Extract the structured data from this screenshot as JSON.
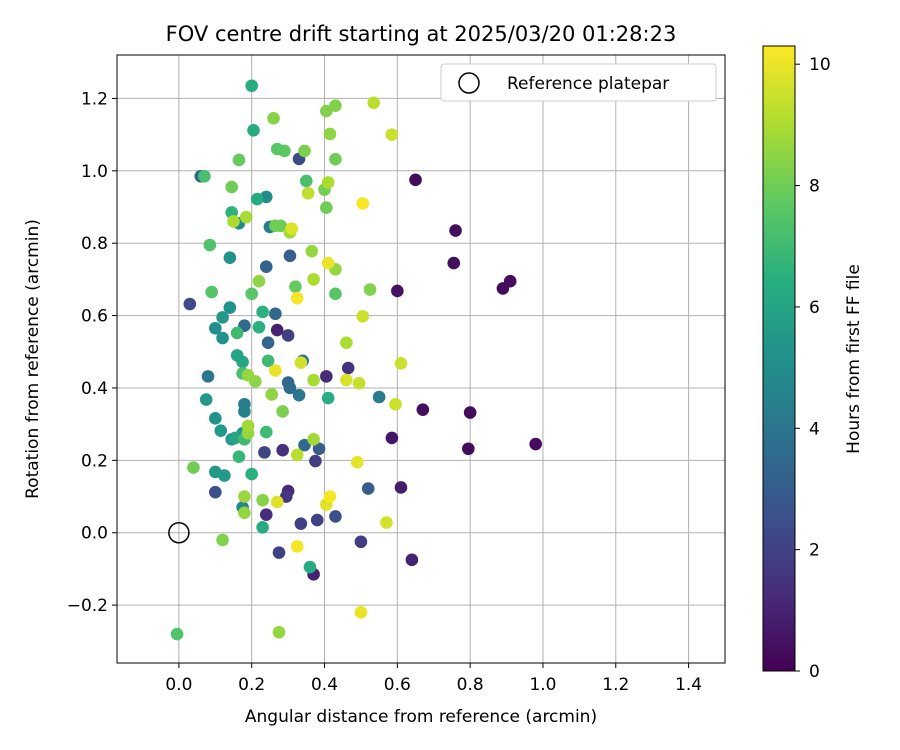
{
  "chart_data": {
    "type": "scatter",
    "title": "FOV centre drift starting at 2025/03/20 01:28:23",
    "xlabel": "Angular distance from reference (arcmin)",
    "ylabel": "Rotation from reference (arcmin)",
    "xlim": [
      -0.17,
      1.5
    ],
    "ylim": [
      -0.36,
      1.32
    ],
    "xticks": [
      0.0,
      0.2,
      0.4,
      0.6,
      0.8,
      1.0,
      1.2,
      1.4
    ],
    "yticks": [
      -0.2,
      0.0,
      0.2,
      0.4,
      0.6,
      0.8,
      1.0,
      1.2
    ],
    "xtick_labels": [
      "0.0",
      "0.2",
      "0.4",
      "0.6",
      "0.8",
      "1.0",
      "1.2",
      "1.4"
    ],
    "ytick_labels": [
      "−0.2",
      "0.0",
      "0.2",
      "0.4",
      "0.6",
      "0.8",
      "1.0",
      "1.2"
    ],
    "grid": true,
    "legend": {
      "placement": "top-right",
      "entries": [
        "Reference platepar"
      ]
    },
    "reference_point": {
      "x": 0.0,
      "y": 0.0
    },
    "colorbar": {
      "label": "Hours from first FF file",
      "min": 0,
      "max": 10.3,
      "ticks": [
        0,
        2,
        4,
        6,
        8,
        10
      ],
      "tick_labels": [
        "0",
        "2",
        "4",
        "6",
        "8",
        "10"
      ],
      "colormap": "viridis"
    },
    "points": [
      {
        "x": 0.65,
        "y": 0.975,
        "c": 0.3
      },
      {
        "x": 0.76,
        "y": 0.835,
        "c": 0.4
      },
      {
        "x": 0.755,
        "y": 0.745,
        "c": 0.4
      },
      {
        "x": 0.89,
        "y": 0.675,
        "c": 0.3
      },
      {
        "x": 0.91,
        "y": 0.695,
        "c": 0.3
      },
      {
        "x": 0.6,
        "y": 0.668,
        "c": 0.5
      },
      {
        "x": 0.67,
        "y": 0.34,
        "c": 0.4
      },
      {
        "x": 0.8,
        "y": 0.332,
        "c": 0.3
      },
      {
        "x": 0.98,
        "y": 0.245,
        "c": 0.3
      },
      {
        "x": 0.795,
        "y": 0.232,
        "c": 0.3
      },
      {
        "x": 0.585,
        "y": 0.262,
        "c": 0.6
      },
      {
        "x": 0.61,
        "y": 0.125,
        "c": 0.8
      },
      {
        "x": 0.64,
        "y": -0.075,
        "c": 1.0
      },
      {
        "x": 0.5,
        "y": -0.025,
        "c": 1.8
      },
      {
        "x": 0.37,
        "y": -0.115,
        "c": 1.0
      },
      {
        "x": 0.38,
        "y": 0.035,
        "c": 2.0
      },
      {
        "x": 0.43,
        "y": 0.045,
        "c": 2.5
      },
      {
        "x": 0.335,
        "y": 0.025,
        "c": 2.0
      },
      {
        "x": 0.275,
        "y": -0.055,
        "c": 2.0
      },
      {
        "x": 0.24,
        "y": 0.05,
        "c": 1.3
      },
      {
        "x": 0.3,
        "y": 0.115,
        "c": 1.2
      },
      {
        "x": 0.295,
        "y": 0.1,
        "c": 1.6
      },
      {
        "x": 0.285,
        "y": 0.228,
        "c": 1.4
      },
      {
        "x": 0.235,
        "y": 0.222,
        "c": 2.2
      },
      {
        "x": 0.375,
        "y": 0.198,
        "c": 1.8
      },
      {
        "x": 0.385,
        "y": 0.232,
        "c": 3.0
      },
      {
        "x": 0.345,
        "y": 0.242,
        "c": 3.5
      },
      {
        "x": 0.405,
        "y": 0.432,
        "c": 1.2
      },
      {
        "x": 0.465,
        "y": 0.455,
        "c": 1.5
      },
      {
        "x": 0.27,
        "y": 0.56,
        "c": 1.0
      },
      {
        "x": 0.3,
        "y": 0.545,
        "c": 2.0
      },
      {
        "x": 0.33,
        "y": 1.033,
        "c": 2.3
      },
      {
        "x": 0.06,
        "y": 0.985,
        "c": 3.5
      },
      {
        "x": 0.03,
        "y": 0.632,
        "c": 2.3
      },
      {
        "x": 0.1,
        "y": 0.112,
        "c": 2.5
      },
      {
        "x": 0.52,
        "y": 0.122,
        "c": 3.0
      },
      {
        "x": 0.305,
        "y": 0.765,
        "c": 3.0
      },
      {
        "x": 0.24,
        "y": 0.735,
        "c": 3.3
      },
      {
        "x": 0.245,
        "y": 0.525,
        "c": 3.3
      },
      {
        "x": 0.265,
        "y": 0.605,
        "c": 3.5
      },
      {
        "x": 0.18,
        "y": 0.572,
        "c": 3.6
      },
      {
        "x": 0.3,
        "y": 0.415,
        "c": 3.5
      },
      {
        "x": 0.305,
        "y": 0.4,
        "c": 3.6
      },
      {
        "x": 0.33,
        "y": 0.38,
        "c": 4.0
      },
      {
        "x": 0.34,
        "y": 0.475,
        "c": 4.0
      },
      {
        "x": 0.55,
        "y": 0.375,
        "c": 4.2
      },
      {
        "x": 0.18,
        "y": 0.355,
        "c": 4.3
      },
      {
        "x": 0.18,
        "y": 0.335,
        "c": 4.5
      },
      {
        "x": 0.08,
        "y": 0.432,
        "c": 4.0
      },
      {
        "x": 0.25,
        "y": 0.845,
        "c": 4.3
      },
      {
        "x": 0.175,
        "y": 0.07,
        "c": 4.7
      },
      {
        "x": 0.24,
        "y": 0.928,
        "c": 5.0
      },
      {
        "x": 0.165,
        "y": 0.855,
        "c": 5.0
      },
      {
        "x": 0.14,
        "y": 0.76,
        "c": 5.2
      },
      {
        "x": 0.14,
        "y": 0.622,
        "c": 5.2
      },
      {
        "x": 0.1,
        "y": 0.565,
        "c": 5.0
      },
      {
        "x": 0.12,
        "y": 0.538,
        "c": 5.2
      },
      {
        "x": 0.12,
        "y": 0.595,
        "c": 5.4
      },
      {
        "x": 0.075,
        "y": 0.368,
        "c": 5.4
      },
      {
        "x": 0.1,
        "y": 0.316,
        "c": 5.2
      },
      {
        "x": 0.115,
        "y": 0.282,
        "c": 5.5
      },
      {
        "x": 0.145,
        "y": 0.258,
        "c": 5.5
      },
      {
        "x": 0.1,
        "y": 0.168,
        "c": 5.5
      },
      {
        "x": 0.125,
        "y": 0.158,
        "c": 5.5
      },
      {
        "x": 0.175,
        "y": 0.275,
        "c": 5.6
      },
      {
        "x": 0.155,
        "y": 0.262,
        "c": 6.0
      },
      {
        "x": 0.16,
        "y": 0.49,
        "c": 6.0
      },
      {
        "x": 0.175,
        "y": 0.472,
        "c": 6.0
      },
      {
        "x": 0.41,
        "y": 0.372,
        "c": 6.4
      },
      {
        "x": 0.215,
        "y": 0.922,
        "c": 6.3
      },
      {
        "x": 0.205,
        "y": 1.112,
        "c": 6.3
      },
      {
        "x": 0.2,
        "y": 1.235,
        "c": 6.4
      },
      {
        "x": 0.145,
        "y": 0.885,
        "c": 6.6
      },
      {
        "x": 0.22,
        "y": 0.568,
        "c": 6.5
      },
      {
        "x": 0.23,
        "y": 0.61,
        "c": 6.5
      },
      {
        "x": 0.36,
        "y": -0.095,
        "c": 6.3
      },
      {
        "x": 0.23,
        "y": 0.015,
        "c": 6.3
      },
      {
        "x": 0.2,
        "y": 0.162,
        "c": 6.5
      },
      {
        "x": 0.165,
        "y": 0.21,
        "c": 6.8
      },
      {
        "x": 0.16,
        "y": 0.552,
        "c": 7.0
      },
      {
        "x": 0.18,
        "y": 0.258,
        "c": 7.0
      },
      {
        "x": 0.24,
        "y": 0.278,
        "c": 7.0
      },
      {
        "x": 0.245,
        "y": 0.475,
        "c": 7.0
      },
      {
        "x": 0.175,
        "y": 0.44,
        "c": 7.2
      },
      {
        "x": 0.35,
        "y": 0.972,
        "c": 7.2
      },
      {
        "x": 0.07,
        "y": 0.985,
        "c": 7.2
      },
      {
        "x": 0.085,
        "y": 0.795,
        "c": 7.4
      },
      {
        "x": 0.09,
        "y": 0.665,
        "c": 7.5
      },
      {
        "x": 0.2,
        "y": 0.66,
        "c": 7.6
      },
      {
        "x": 0.43,
        "y": 0.66,
        "c": 7.6
      },
      {
        "x": 0.32,
        "y": 0.68,
        "c": 7.8
      },
      {
        "x": 0.29,
        "y": 1.055,
        "c": 7.7
      },
      {
        "x": 0.27,
        "y": 1.06,
        "c": 7.6
      },
      {
        "x": 0.165,
        "y": 1.03,
        "c": 7.8
      },
      {
        "x": 0.145,
        "y": 0.955,
        "c": 8.0
      },
      {
        "x": 0.265,
        "y": 0.848,
        "c": 8.0
      },
      {
        "x": 0.28,
        "y": 0.848,
        "c": 8.0
      },
      {
        "x": 0.345,
        "y": 1.055,
        "c": 8.2
      },
      {
        "x": 0.43,
        "y": 1.032,
        "c": 8.0
      },
      {
        "x": 0.4,
        "y": 0.948,
        "c": 8.1
      },
      {
        "x": 0.405,
        "y": 0.898,
        "c": 8.0
      },
      {
        "x": 0.405,
        "y": 1.165,
        "c": 8.3
      },
      {
        "x": 0.43,
        "y": 1.18,
        "c": 8.3
      },
      {
        "x": 0.26,
        "y": 1.145,
        "c": 8.4
      },
      {
        "x": 0.415,
        "y": 1.102,
        "c": 8.5
      },
      {
        "x": 0.22,
        "y": 0.695,
        "c": 8.5
      },
      {
        "x": 0.43,
        "y": 0.728,
        "c": 8.6
      },
      {
        "x": 0.525,
        "y": 0.672,
        "c": 8.3
      },
      {
        "x": 0.365,
        "y": 0.778,
        "c": 8.6
      },
      {
        "x": 0.305,
        "y": 0.83,
        "c": 8.8
      },
      {
        "x": 0.19,
        "y": 0.435,
        "c": 8.6
      },
      {
        "x": 0.21,
        "y": 0.418,
        "c": 8.5
      },
      {
        "x": 0.255,
        "y": 0.382,
        "c": 8.5
      },
      {
        "x": 0.285,
        "y": 0.335,
        "c": 8.2
      },
      {
        "x": 0.19,
        "y": 0.275,
        "c": 8.6
      },
      {
        "x": 0.19,
        "y": 0.295,
        "c": 8.8
      },
      {
        "x": 0.04,
        "y": 0.18,
        "c": 8.0
      },
      {
        "x": 0.18,
        "y": 0.1,
        "c": 8.7
      },
      {
        "x": 0.23,
        "y": 0.09,
        "c": 8.4
      },
      {
        "x": 0.18,
        "y": 0.055,
        "c": 8.6
      },
      {
        "x": 0.12,
        "y": -0.02,
        "c": 8.3
      },
      {
        "x": -0.005,
        "y": -0.28,
        "c": 7.4
      },
      {
        "x": 0.275,
        "y": -0.275,
        "c": 8.6
      },
      {
        "x": 0.37,
        "y": 0.258,
        "c": 8.8
      },
      {
        "x": 0.325,
        "y": 0.215,
        "c": 9.2
      },
      {
        "x": 0.37,
        "y": 0.422,
        "c": 8.9
      },
      {
        "x": 0.46,
        "y": 0.525,
        "c": 9.0
      },
      {
        "x": 0.37,
        "y": 0.7,
        "c": 9.0
      },
      {
        "x": 0.15,
        "y": 0.86,
        "c": 9.0
      },
      {
        "x": 0.185,
        "y": 0.872,
        "c": 8.9
      },
      {
        "x": 0.41,
        "y": 0.968,
        "c": 9.0
      },
      {
        "x": 0.355,
        "y": 0.938,
        "c": 9.3
      },
      {
        "x": 0.535,
        "y": 1.188,
        "c": 9.2
      },
      {
        "x": 0.585,
        "y": 1.1,
        "c": 9.5
      },
      {
        "x": 0.505,
        "y": 0.598,
        "c": 9.5
      },
      {
        "x": 0.61,
        "y": 0.468,
        "c": 9.5
      },
      {
        "x": 0.495,
        "y": 0.413,
        "c": 9.4
      },
      {
        "x": 0.595,
        "y": 0.355,
        "c": 9.5
      },
      {
        "x": 0.335,
        "y": 0.47,
        "c": 9.6
      },
      {
        "x": 0.46,
        "y": 0.422,
        "c": 9.7
      },
      {
        "x": 0.265,
        "y": 0.448,
        "c": 10.0
      },
      {
        "x": 0.31,
        "y": 0.84,
        "c": 9.8
      },
      {
        "x": 0.41,
        "y": 0.745,
        "c": 10.0
      },
      {
        "x": 0.505,
        "y": 0.91,
        "c": 10.2
      },
      {
        "x": 0.325,
        "y": 0.648,
        "c": 10.2
      },
      {
        "x": 0.49,
        "y": 0.195,
        "c": 9.9
      },
      {
        "x": 0.405,
        "y": 0.078,
        "c": 9.8
      },
      {
        "x": 0.415,
        "y": 0.1,
        "c": 10.2
      },
      {
        "x": 0.27,
        "y": 0.085,
        "c": 9.8
      },
      {
        "x": 0.57,
        "y": 0.028,
        "c": 9.6
      },
      {
        "x": 0.325,
        "y": -0.038,
        "c": 10.2
      },
      {
        "x": 0.5,
        "y": -0.22,
        "c": 10.0
      }
    ]
  }
}
